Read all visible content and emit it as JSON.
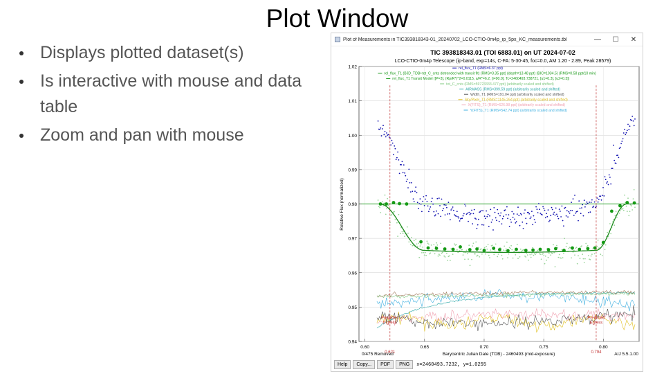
{
  "slide": {
    "title": "Plot Window",
    "bullets": [
      "Displays plotted dataset(s)",
      "Is interactive with mouse and data table",
      "Zoom and pan with mouse"
    ]
  },
  "window": {
    "title": "Plot of Measurements in TIC393818343-01_20240702_LCO-CTIO-0m4p_ip_5px_KC_measurements.tbl",
    "controls": [
      "—",
      "☐",
      "✕"
    ]
  },
  "plot": {
    "title": "TIC 393818343.01 (TOI 6883.01) on UT 2024-07-02",
    "subtitle": "LCO-CTIO-0m4p Telescope (ip-band, exp=14s, C-FA: 5-30-45, foc=0.0, AM 1.20 - 2.89, Peak 28579)",
    "xlabel": "Barycentric Julian Date (TDB) - 2460493 (mid-exposure)",
    "ylabel": "Relative Flux (normalized)",
    "x_ticks": [
      "0.60",
      "0.65",
      "0.70",
      "0.75",
      "0.80"
    ],
    "y_ticks": [
      "1.02",
      "1.01",
      "1.00",
      "0.99",
      "0.98",
      "0.97",
      "0.96",
      "0.95",
      "0.94"
    ],
    "removed_note": "0/475 Removed",
    "version": "AIJ 5.5.1.00",
    "legend": [
      {
        "text": "rel_flux_T1 (RMS=6.37 ppt)",
        "color": "#1010b0"
      },
      {
        "text": "rel_flux_T1 (BJD_TDB+tot_C_cnts detrended with transit fit) (RMS=3.35 ppt) (depth=13.48 ppt) (BIC=1034.5) (RMS=0.58 ppt/10 min)",
        "color": "#1a9a1a"
      },
      {
        "text": "rel_flux_T1 Transit Model ([P=3], (Rp/R*)^2=0.0115, a/R*=6.2, [i=90.0], Tc=2460493.738721, [u1=0.3], [u2=0.3])",
        "color": "#1a9a1a"
      },
      {
        "text": "tot_C_cnts (RMS=59723333.477 ppt) (arbitrarily scaled and shifted)",
        "color": "#7fc87f"
      },
      {
        "text": "AIRMASS (RMS=399.59 ppt) (arbitrarily scaled and shifted)",
        "color": "#2aa6a6"
      },
      {
        "text": "Width_T1 (RMS=191.04 ppt) (arbitrarily scaled and shifted)",
        "color": "#555555"
      },
      {
        "text": "Sky/Pixel_T1 (RMS=1145.264 ppt) (arbitrarily scaled and shifted)",
        "color": "#e0c020"
      },
      {
        "text": "X(FITS)_T1 (RMS=626.98 ppt) (arbitrarily scaled and shifted)",
        "color": "#f0a0b0"
      },
      {
        "text": "Y(FITS)_T1 (RMS=542.74 ppt) (arbitrarily scaled and shifted)",
        "color": "#40b0e0"
      }
    ],
    "ingress": {
      "label1": "Predicted",
      "label2": "Ingress",
      "value": "0.621"
    },
    "egress": {
      "label1": "Predicted",
      "label2": "Egress",
      "value": "0.794"
    }
  },
  "bottom": {
    "buttons": [
      "Help",
      "Copy...",
      "PDF",
      "PNG"
    ],
    "coords": "x=2460493.7232, y=1.0255"
  },
  "chart_data": {
    "type": "scatter",
    "title": "TIC 393818343.01 (TOI 6883.01) on UT 2024-07-02",
    "xlabel": "Barycentric Julian Date (TDB) - 2460493 (mid-exposure)",
    "ylabel": "Relative Flux (normalized)",
    "xlim": [
      0.595,
      0.83
    ],
    "ylim": [
      0.94,
      1.02
    ],
    "grid": true,
    "reference_line_y": 0.98,
    "predicted_ingress_x": 0.621,
    "predicted_egress_x": 0.794,
    "transit_model": {
      "baseline": 0.98,
      "depth": 0.01348,
      "ingress_x": [
        0.6125,
        0.6495
      ],
      "egress_x": [
        0.794,
        0.8195
      ]
    },
    "binned_series": {
      "name": "rel_flux_T1 (BJD_TDB+tot_C_cnts detrended with transit fit) (RMS=3.35 ppt) (depth=13.48 ppt) (BIC=1034.5) (RMS=0.58 ppt/10 min)",
      "x": [
        0.613,
        0.618,
        0.624,
        0.629,
        0.635,
        0.647,
        0.653,
        0.66,
        0.667,
        0.674,
        0.68,
        0.688,
        0.694,
        0.7,
        0.708,
        0.713,
        0.72,
        0.727,
        0.735,
        0.741,
        0.747,
        0.754,
        0.76,
        0.767,
        0.774,
        0.78,
        0.787,
        0.793,
        0.8,
        0.807,
        0.814,
        0.82,
        0.826
      ],
      "y": [
        0.98,
        0.98,
        0.9804,
        0.9801,
        0.98,
        0.969,
        0.9672,
        0.9671,
        0.9669,
        0.9668,
        0.9675,
        0.9667,
        0.9669,
        0.9665,
        0.9671,
        0.9667,
        0.9664,
        0.9668,
        0.9665,
        0.9666,
        0.9668,
        0.9667,
        0.967,
        0.9665,
        0.9672,
        0.9668,
        0.967,
        0.9672,
        0.9688,
        0.9779,
        0.9795,
        0.9804,
        0.9803
      ]
    }
  }
}
